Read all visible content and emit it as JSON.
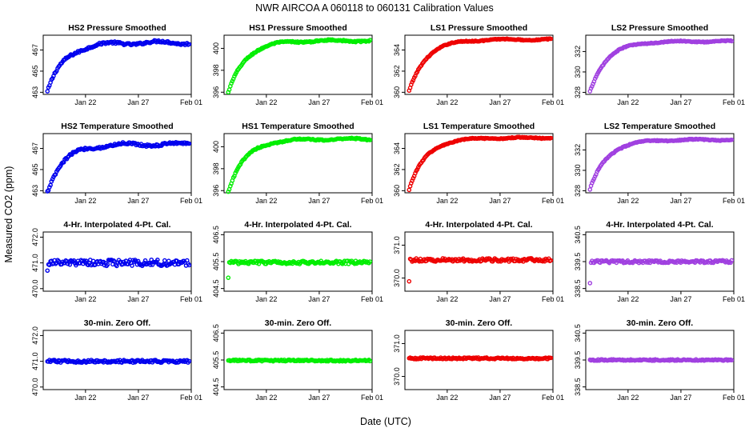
{
  "title": "NWR   AIRCOA A   060118 to 060131   Calibration Values",
  "xlabel": "Date (UTC)",
  "ylabel": "Measured CO2 (ppm)",
  "colors": {
    "HS2": "#0000ee",
    "HS1": "#00ee00",
    "LS1": "#ee0000",
    "LS2": "#a040e0"
  },
  "chart_data": {
    "type": "scatter",
    "grid": false,
    "x_axis": {
      "type": "date",
      "xlim": [
        "2006-01-18",
        "2006-02-01"
      ],
      "tick_dates": [
        "2006-01-22",
        "2006-01-27",
        "2006-02-01"
      ],
      "tick_labels": [
        "Jan 22",
        "Jan 27",
        "Feb 01"
      ]
    },
    "panel_titles": [
      "HS2 Pressure Smoothed",
      "HS1 Pressure Smoothed",
      "LS1 Pressure Smoothed",
      "LS2 Pressure Smoothed",
      "HS2 Temperature Smoothed",
      "HS1 Temperature Smoothed",
      "LS1 Temperature Smoothed",
      "LS2 Temperature Smoothed",
      "4-Hr. Interpolated 4-Pt. Cal.",
      "4-Hr. Interpolated 4-Pt. Cal.",
      "4-Hr. Interpolated 4-Pt. Cal.",
      "4-Hr. Interpolated 4-Pt. Cal.",
      "30-min. Zero Off.",
      "30-min. Zero Off.",
      "30-min. Zero Off.",
      "30-min. Zero Off."
    ],
    "panels": [
      {
        "series": "HS2",
        "ylim": [
          462.8,
          468.4
        ],
        "yticks": [
          "463",
          "465",
          "467"
        ],
        "kind": "rise",
        "start": 463.0,
        "end": 467.7,
        "wiggle": 0.35
      },
      {
        "series": "HS1",
        "ylim": [
          395.8,
          401.2
        ],
        "yticks": [
          "396",
          "398",
          "400"
        ],
        "kind": "rise",
        "start": 395.9,
        "end": 400.7,
        "wiggle": 0.2
      },
      {
        "series": "LS1",
        "ylim": [
          359.8,
          365.4
        ],
        "yticks": [
          "360",
          "362",
          "364"
        ],
        "kind": "rise",
        "start": 360.1,
        "end": 365.0,
        "wiggle": 0.15
      },
      {
        "series": "LS2",
        "ylim": [
          327.8,
          333.6
        ],
        "yticks": [
          "328",
          "330",
          "332"
        ],
        "kind": "rise",
        "start": 328.1,
        "end": 333.0,
        "wiggle": 0.15
      },
      {
        "series": "HS2",
        "ylim": [
          462.8,
          468.4
        ],
        "yticks": [
          "463",
          "465",
          "467"
        ],
        "kind": "rise",
        "start": 463.0,
        "end": 467.4,
        "wiggle": 0.35
      },
      {
        "series": "HS1",
        "ylim": [
          395.8,
          401.2
        ],
        "yticks": [
          "396",
          "398",
          "400"
        ],
        "kind": "rise",
        "start": 395.9,
        "end": 400.7,
        "wiggle": 0.2
      },
      {
        "series": "LS1",
        "ylim": [
          359.8,
          365.4
        ],
        "yticks": [
          "360",
          "362",
          "364"
        ],
        "kind": "rise",
        "start": 360.1,
        "end": 365.0,
        "wiggle": 0.15
      },
      {
        "series": "LS2",
        "ylim": [
          327.8,
          333.6
        ],
        "yticks": [
          "328",
          "330",
          "332"
        ],
        "kind": "rise",
        "start": 328.1,
        "end": 333.0,
        "wiggle": 0.15
      },
      {
        "series": "HS2",
        "ylim": [
          469.9,
          472.2
        ],
        "yticks": [
          "470.0",
          "471.0",
          "472.0"
        ],
        "kind": "flat",
        "center": 471.0,
        "noise": 0.12,
        "first": 470.7
      },
      {
        "series": "HS1",
        "ylim": [
          404.4,
          406.6
        ],
        "yticks": [
          "404.5",
          "405.5",
          "406.5"
        ],
        "kind": "flat",
        "center": 405.47,
        "noise": 0.06,
        "first": 404.9
      },
      {
        "series": "LS1",
        "ylim": [
          369.6,
          371.4
        ],
        "yticks": [
          "370.0",
          "371.0"
        ],
        "kind": "flat",
        "center": 370.55,
        "noise": 0.05,
        "first": 369.9
      },
      {
        "series": "LS2",
        "ylim": [
          338.4,
          340.6
        ],
        "yticks": [
          "338.5",
          "339.5",
          "340.5"
        ],
        "kind": "flat",
        "center": 339.5,
        "noise": 0.05,
        "first": 338.7
      },
      {
        "series": "HS2",
        "ylim": [
          469.9,
          472.2
        ],
        "yticks": [
          "470.0",
          "471.0",
          "472.0"
        ],
        "kind": "flat",
        "center": 471.0,
        "noise": 0.05
      },
      {
        "series": "HS1",
        "ylim": [
          404.4,
          406.6
        ],
        "yticks": [
          "404.5",
          "405.5",
          "406.5"
        ],
        "kind": "flat",
        "center": 405.48,
        "noise": 0.03
      },
      {
        "series": "LS1",
        "ylim": [
          369.6,
          371.4
        ],
        "yticks": [
          "370.0",
          "371.0"
        ],
        "kind": "flat",
        "center": 370.55,
        "noise": 0.025
      },
      {
        "series": "LS2",
        "ylim": [
          338.4,
          340.6
        ],
        "yticks": [
          "338.5",
          "339.5",
          "340.5"
        ],
        "kind": "flat",
        "center": 339.5,
        "noise": 0.025
      }
    ]
  }
}
